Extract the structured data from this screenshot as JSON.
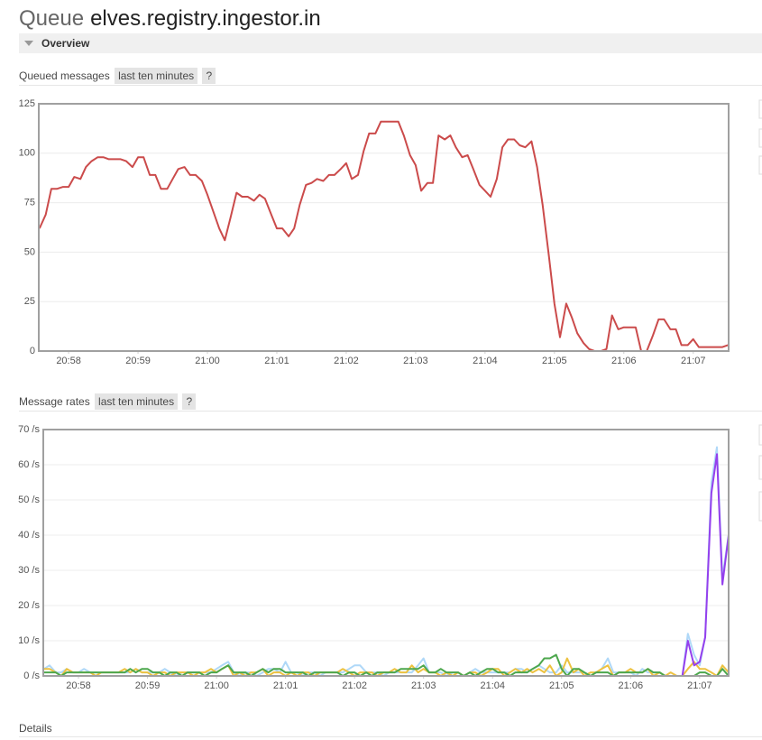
{
  "header": {
    "prefix": "Queue",
    "name": "elves.registry.ingestor.in"
  },
  "overview": "Overview",
  "details": "Details",
  "chart_data": [
    {
      "type": "line",
      "title": "Queued messages",
      "range": "last ten minutes",
      "help": "?",
      "x": [
        1257.58,
        1257.67,
        1257.75,
        1257.83,
        1257.92,
        1258,
        1258.08,
        1258.17,
        1258.25,
        1258.33,
        1258.42,
        1258.5,
        1258.58,
        1258.67,
        1258.75,
        1258.83,
        1258.92,
        1259,
        1259.08,
        1259.17,
        1259.25,
        1259.33,
        1259.42,
        1259.5,
        1259.58,
        1259.67,
        1259.75,
        1259.83,
        1259.92,
        1260,
        1260.08,
        1260.17,
        1260.25,
        1260.33,
        1260.42,
        1260.5,
        1260.58,
        1260.67,
        1260.75,
        1260.83,
        1260.92,
        1261,
        1261.08,
        1261.17,
        1261.25,
        1261.33,
        1261.42,
        1261.5,
        1261.58,
        1261.67,
        1261.75,
        1261.83,
        1261.92,
        1262,
        1262.08,
        1262.17,
        1262.25,
        1262.33,
        1262.42,
        1262.5,
        1262.58,
        1262.67,
        1262.75,
        1262.83,
        1262.92,
        1263,
        1263.08,
        1263.17,
        1263.25,
        1263.33,
        1263.42,
        1263.5,
        1263.58,
        1263.67,
        1263.75,
        1263.83,
        1263.92,
        1264,
        1264.08,
        1264.17,
        1264.25,
        1264.33,
        1264.42,
        1264.5,
        1264.58,
        1264.67,
        1264.75,
        1264.83,
        1264.92,
        1265,
        1265.08,
        1265.17,
        1265.25,
        1265.33,
        1265.42,
        1265.5,
        1265.58,
        1265.67,
        1265.75,
        1265.83,
        1265.92,
        1266,
        1266.08,
        1266.17,
        1266.25,
        1266.33,
        1266.42,
        1266.5,
        1266.58,
        1266.67,
        1266.75,
        1266.83,
        1266.92,
        1267,
        1267.08,
        1267.17,
        1267.25,
        1267.33,
        1267.42,
        1267.5
      ],
      "xlim": [
        1257.57,
        1267.51
      ],
      "xticks": [
        {
          "value": 1258,
          "label": "20:58"
        },
        {
          "value": 1259,
          "label": "20:59"
        },
        {
          "value": 1260,
          "label": "21:00"
        },
        {
          "value": 1261,
          "label": "21:01"
        },
        {
          "value": 1262,
          "label": "21:02"
        },
        {
          "value": 1263,
          "label": "21:03"
        },
        {
          "value": 1264,
          "label": "21:04"
        },
        {
          "value": 1265,
          "label": "21:05"
        },
        {
          "value": 1266,
          "label": "21:06"
        },
        {
          "value": 1267,
          "label": "21:07"
        }
      ],
      "ylim": [
        0,
        125
      ],
      "yticks": [
        0,
        25,
        50,
        75,
        100,
        125
      ],
      "grid": true,
      "series": [
        {
          "color": "#cb4b4b",
          "values": [
            62,
            69,
            82,
            82,
            83,
            83,
            88,
            87,
            93,
            96,
            98,
            98,
            97,
            97,
            97,
            96,
            93,
            98,
            98,
            89,
            89,
            82,
            82,
            87,
            92,
            93,
            89,
            89,
            86,
            79,
            71,
            62,
            56,
            67,
            80,
            78,
            78,
            76,
            79,
            77,
            69,
            62,
            62,
            58,
            62,
            74,
            84,
            85,
            87,
            86,
            89,
            89,
            92,
            95,
            87,
            89,
            101,
            110,
            110,
            116,
            116,
            116,
            116,
            109,
            99,
            94,
            81,
            85,
            85,
            109,
            107,
            109,
            103,
            98,
            99,
            92,
            84,
            81,
            78,
            87,
            103,
            107,
            107,
            104,
            103,
            106,
            93,
            74,
            48,
            24,
            7,
            24,
            17,
            9,
            4,
            1,
            0,
            0,
            1,
            18,
            11,
            12,
            12,
            12,
            0,
            0,
            8,
            16,
            16,
            11,
            11,
            3,
            3,
            6,
            2,
            2,
            2,
            2,
            2,
            3
          ]
        },
        {
          "color": "#edc240",
          "values": [
            0,
            0,
            0,
            0,
            0,
            0,
            0,
            0,
            0,
            0,
            0,
            0,
            0,
            0,
            0,
            0,
            0,
            0,
            0,
            0,
            0,
            0,
            0,
            0,
            0,
            0,
            0,
            0,
            0,
            0,
            0,
            0,
            0,
            0,
            0,
            0,
            0,
            0,
            0,
            0,
            0,
            0,
            0,
            0,
            0,
            0,
            0,
            0,
            0,
            0,
            0,
            0,
            0,
            0,
            0,
            0,
            0,
            0,
            0,
            0,
            0,
            0,
            0,
            0,
            0,
            0,
            0,
            0,
            0,
            0,
            0,
            0,
            0,
            0,
            0,
            0,
            0,
            0,
            0,
            0,
            0,
            0,
            0,
            0,
            0,
            0,
            0,
            0,
            0,
            0,
            0,
            0,
            0,
            0,
            0,
            0,
            0,
            0,
            0,
            0,
            0,
            0,
            0,
            0,
            0,
            0,
            0,
            0,
            0,
            0,
            0,
            0,
            0,
            0,
            0,
            0,
            0,
            0,
            0,
            0
          ]
        }
      ]
    },
    {
      "type": "line",
      "title": "Message rates",
      "range": "last ten minutes",
      "help": "?",
      "x": [
        1257.5,
        1257.58,
        1257.67,
        1257.75,
        1257.83,
        1257.92,
        1258,
        1258.08,
        1258.17,
        1258.25,
        1258.33,
        1258.42,
        1258.5,
        1258.58,
        1258.67,
        1258.75,
        1258.83,
        1258.92,
        1259,
        1259.08,
        1259.17,
        1259.25,
        1259.33,
        1259.42,
        1259.5,
        1259.58,
        1259.67,
        1259.75,
        1259.83,
        1259.92,
        1260,
        1260.08,
        1260.17,
        1260.25,
        1260.33,
        1260.42,
        1260.5,
        1260.58,
        1260.67,
        1260.75,
        1260.83,
        1260.92,
        1261,
        1261.08,
        1261.17,
        1261.25,
        1261.33,
        1261.42,
        1261.5,
        1261.58,
        1261.67,
        1261.75,
        1261.83,
        1261.92,
        1262,
        1262.08,
        1262.17,
        1262.25,
        1262.33,
        1262.42,
        1262.5,
        1262.58,
        1262.67,
        1262.75,
        1262.83,
        1262.92,
        1263,
        1263.08,
        1263.17,
        1263.25,
        1263.33,
        1263.42,
        1263.5,
        1263.58,
        1263.67,
        1263.75,
        1263.83,
        1263.92,
        1264,
        1264.08,
        1264.17,
        1264.25,
        1264.33,
        1264.42,
        1264.5,
        1264.58,
        1264.67,
        1264.75,
        1264.83,
        1264.92,
        1265,
        1265.08,
        1265.17,
        1265.25,
        1265.33,
        1265.42,
        1265.5,
        1265.58,
        1265.67,
        1265.75,
        1265.83,
        1265.92,
        1266,
        1266.08,
        1266.17,
        1266.25,
        1266.33,
        1266.42,
        1266.5,
        1266.58,
        1266.67,
        1266.75,
        1266.83,
        1266.92,
        1267,
        1267.08,
        1267.17,
        1267.25,
        1267.33,
        1267.42
      ],
      "xlim": [
        1257.49,
        1267.42
      ],
      "xticks": [
        {
          "value": 1258,
          "label": "20:58"
        },
        {
          "value": 1259,
          "label": "20:59"
        },
        {
          "value": 1260,
          "label": "21:00"
        },
        {
          "value": 1261,
          "label": "21:01"
        },
        {
          "value": 1262,
          "label": "21:02"
        },
        {
          "value": 1263,
          "label": "21:03"
        },
        {
          "value": 1264,
          "label": "21:04"
        },
        {
          "value": 1265,
          "label": "21:05"
        },
        {
          "value": 1266,
          "label": "21:06"
        },
        {
          "value": 1267,
          "label": "21:07"
        }
      ],
      "ylim": [
        0,
        70
      ],
      "yticks": [
        {
          "value": 0,
          "label": "0 /s"
        },
        {
          "value": 10,
          "label": "10 /s"
        },
        {
          "value": 20,
          "label": "20 /s"
        },
        {
          "value": 30,
          "label": "30 /s"
        },
        {
          "value": 40,
          "label": "40 /s"
        },
        {
          "value": 50,
          "label": "50 /s"
        },
        {
          "value": 60,
          "label": "60 /s"
        },
        {
          "value": 70,
          "label": "70 /s"
        }
      ],
      "grid": true,
      "series": [
        {
          "color": "#afd8f8",
          "values": [
            2,
            3,
            1,
            1,
            2,
            1,
            1,
            2,
            1,
            1,
            1,
            1,
            1,
            1,
            1,
            1,
            2,
            1,
            1,
            1,
            1,
            2,
            1,
            0,
            1,
            1,
            1,
            1,
            1,
            1,
            2,
            3,
            4,
            1,
            0,
            1,
            1,
            0,
            1,
            2,
            2,
            1,
            4,
            1,
            1,
            0,
            1,
            1,
            0,
            1,
            1,
            1,
            1,
            2,
            3,
            3,
            1,
            1,
            1,
            0,
            1,
            1,
            1,
            1,
            1,
            3,
            5,
            1,
            1,
            1,
            0,
            1,
            1,
            0,
            1,
            2,
            1,
            1,
            1,
            1,
            1,
            1,
            2,
            2,
            1,
            2,
            3,
            2,
            1,
            1,
            3,
            1,
            1,
            1,
            1,
            0,
            1,
            2,
            5,
            1,
            1,
            1,
            1,
            0,
            2,
            1,
            1,
            1,
            0,
            0,
            0,
            0,
            12,
            6,
            3,
            11,
            55,
            65,
            28,
            40
          ]
        },
        {
          "color": "#edc240",
          "values": [
            2,
            2,
            1,
            0,
            2,
            1,
            1,
            1,
            1,
            0,
            1,
            1,
            1,
            1,
            2,
            1,
            2,
            1,
            1,
            0,
            1,
            1,
            0,
            1,
            1,
            1,
            0,
            1,
            1,
            2,
            1,
            2,
            3,
            0,
            1,
            0,
            1,
            1,
            2,
            0,
            1,
            1,
            0,
            1,
            0,
            1,
            1,
            0,
            1,
            1,
            1,
            1,
            2,
            1,
            0,
            1,
            1,
            1,
            0,
            1,
            1,
            2,
            1,
            1,
            3,
            1,
            2,
            1,
            1,
            0,
            1,
            0,
            1,
            0,
            1,
            1,
            0,
            1,
            2,
            2,
            0,
            1,
            2,
            1,
            2,
            1,
            2,
            1,
            3,
            0,
            1,
            5,
            1,
            2,
            0,
            1,
            1,
            2,
            3,
            0,
            1,
            1,
            2,
            1,
            1,
            2,
            0,
            1,
            0,
            1,
            0,
            0,
            2,
            4,
            2,
            2,
            1,
            0,
            3,
            1
          ]
        },
        {
          "color": "#4da74d",
          "values": [
            1,
            1,
            1,
            0,
            1,
            1,
            1,
            1,
            1,
            1,
            1,
            1,
            1,
            1,
            1,
            2,
            1,
            2,
            2,
            1,
            1,
            0,
            1,
            1,
            0,
            1,
            1,
            1,
            0,
            1,
            1,
            2,
            3,
            1,
            1,
            1,
            0,
            1,
            2,
            1,
            2,
            2,
            1,
            1,
            1,
            1,
            0,
            1,
            1,
            1,
            1,
            1,
            0,
            1,
            1,
            0,
            1,
            0,
            1,
            1,
            1,
            1,
            2,
            2,
            2,
            2,
            3,
            1,
            1,
            2,
            1,
            1,
            1,
            0,
            1,
            0,
            1,
            2,
            2,
            1,
            1,
            0,
            1,
            1,
            1,
            2,
            3,
            5,
            5,
            6,
            2,
            0,
            2,
            2,
            1,
            0,
            1,
            1,
            1,
            0,
            1,
            1,
            1,
            1,
            1,
            2,
            1,
            1,
            0,
            0,
            0,
            0,
            0,
            0,
            1,
            1,
            0,
            0,
            2,
            0
          ]
        },
        {
          "color": "#9440ed",
          "values": [
            0,
            0,
            0,
            0,
            0,
            0,
            0,
            0,
            0,
            0,
            0,
            0,
            0,
            0,
            0,
            0,
            0,
            0,
            0,
            0,
            0,
            0,
            0,
            0,
            0,
            0,
            0,
            0,
            0,
            0,
            0,
            0,
            0,
            0,
            0,
            0,
            0,
            0,
            0,
            0,
            0,
            0,
            0,
            0,
            0,
            0,
            0,
            0,
            0,
            0,
            0,
            0,
            0,
            0,
            0,
            0,
            0,
            0,
            0,
            0,
            0,
            0,
            0,
            0,
            0,
            0,
            0,
            0,
            0,
            0,
            0,
            0,
            0,
            0,
            0,
            0,
            0,
            0,
            0,
            0,
            0,
            0,
            0,
            0,
            0,
            0,
            0,
            0,
            0,
            0,
            0,
            0,
            0,
            0,
            0,
            0,
            0,
            0,
            0,
            0,
            0,
            0,
            0,
            0,
            0,
            0,
            0,
            0,
            0,
            0,
            0,
            0,
            10,
            3,
            4,
            11,
            52,
            63,
            26,
            40
          ]
        }
      ]
    }
  ]
}
